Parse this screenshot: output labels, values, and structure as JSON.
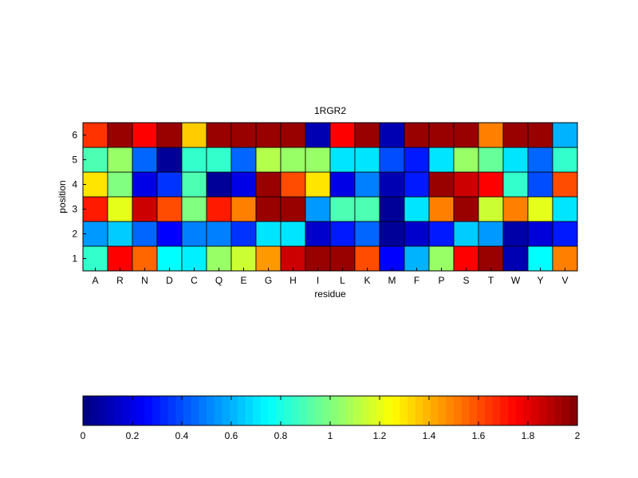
{
  "chart_data": [
    {
      "type": "heatmap",
      "title": "1RGR2",
      "xlabel": "residue",
      "ylabel": "position",
      "x_categories": [
        "A",
        "R",
        "N",
        "D",
        "C",
        "Q",
        "E",
        "G",
        "H",
        "I",
        "L",
        "K",
        "M",
        "F",
        "P",
        "S",
        "T",
        "W",
        "Y",
        "V"
      ],
      "y_categories": [
        "1",
        "2",
        "3",
        "4",
        "5",
        "6"
      ],
      "clim": [
        0,
        2
      ],
      "colormap": "jet",
      "values": [
        [
          0.85,
          1.75,
          1.55,
          0.75,
          0.72,
          1.05,
          1.15,
          1.45,
          1.85,
          1.95,
          1.95,
          1.6,
          0.25,
          0.6,
          1.05,
          1.75,
          1.95,
          0.1,
          0.75,
          1.5
        ],
        [
          0.55,
          0.65,
          0.45,
          0.25,
          0.5,
          0.5,
          0.35,
          0.7,
          0.7,
          0.15,
          0.3,
          0.45,
          0.05,
          0.15,
          0.3,
          0.65,
          0.55,
          0.08,
          0.18,
          0.3
        ],
        [
          1.7,
          1.2,
          1.85,
          1.6,
          1.0,
          1.7,
          1.5,
          1.95,
          1.95,
          0.55,
          0.9,
          0.9,
          0.05,
          0.7,
          1.5,
          1.95,
          1.15,
          1.5,
          1.2,
          0.7
        ],
        [
          1.3,
          1.0,
          0.2,
          0.35,
          0.9,
          0.05,
          0.2,
          1.95,
          1.6,
          1.3,
          0.2,
          0.5,
          0.1,
          0.3,
          1.95,
          1.85,
          1.75,
          0.85,
          0.4,
          1.6
        ],
        [
          0.9,
          1.05,
          0.45,
          0.05,
          0.85,
          0.85,
          0.45,
          1.1,
          1.05,
          1.05,
          0.7,
          0.7,
          0.4,
          0.3,
          0.7,
          1.05,
          0.95,
          0.7,
          0.45,
          0.85
        ],
        [
          1.65,
          1.95,
          1.75,
          1.95,
          1.35,
          1.95,
          1.95,
          1.95,
          1.95,
          0.1,
          1.75,
          1.95,
          0.1,
          1.95,
          1.95,
          1.95,
          1.5,
          1.95,
          1.95,
          0.6
        ]
      ]
    },
    {
      "type": "colorbar",
      "colormap": "jet",
      "range": [
        0,
        2
      ],
      "tick_labels": [
        "0",
        "0.2",
        "0.4",
        "0.6",
        "0.8",
        "1",
        "1.2",
        "1.4",
        "1.6",
        "1.8",
        "2"
      ],
      "tick_values": [
        0,
        0.2,
        0.4,
        0.6,
        0.8,
        1.0,
        1.2,
        1.4,
        1.6,
        1.8,
        2.0
      ]
    }
  ]
}
